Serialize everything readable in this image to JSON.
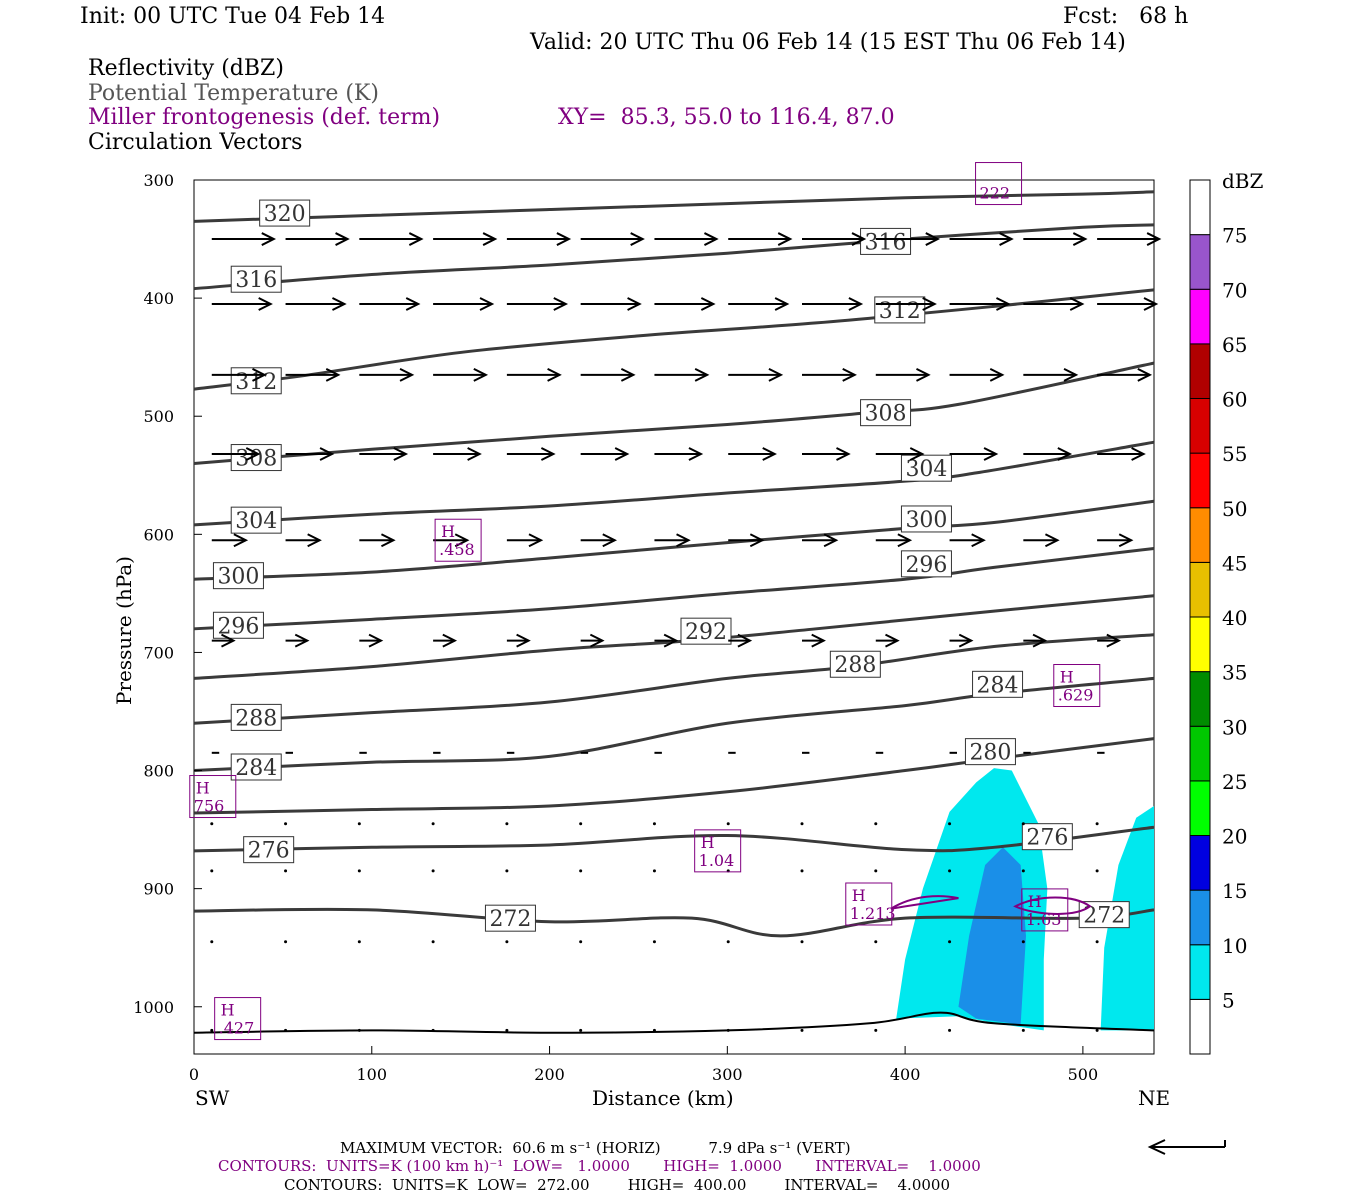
{
  "header": {
    "init": "Init: 00 UTC Tue 04 Feb 14",
    "fcst": "Fcst:   68 h",
    "valid": "Valid: 20 UTC Thu 06 Feb 14 (15 EST Thu 06 Feb 14)",
    "field1": "Reflectivity (dBZ)",
    "field2": "Potential Temperature (K)",
    "field3": "Miller frontogenesis (def. term)",
    "xy": "XY=  85.3, 55.0 to 116.4, 87.0",
    "field4": "Circulation Vectors"
  },
  "colors": {
    "theta": "#3a3a3a",
    "fronto": "#800080",
    "refl_light": "#00e8ee",
    "refl_mid": "#1a8fe8"
  },
  "chart_data": {
    "type": "cross-section",
    "xlabel": "Distance (km)",
    "ylabel": "Pressure (hPa)",
    "x_end_left": "SW",
    "x_end_right": "NE",
    "xlim": [
      0,
      540
    ],
    "ylim": [
      1040,
      300
    ],
    "y_scale": "pressure",
    "x_ticks": [
      0,
      100,
      200,
      300,
      400,
      500
    ],
    "y_ticks": [
      300,
      400,
      500,
      600,
      700,
      800,
      900,
      1000
    ],
    "colorbar": {
      "label": "dBZ",
      "levels": [
        5,
        10,
        15,
        20,
        25,
        30,
        35,
        40,
        45,
        50,
        55,
        60,
        65,
        70,
        75
      ],
      "colors": [
        "#ffffff",
        "#00e8ee",
        "#1a8fe8",
        "#0000e0",
        "#00ff00",
        "#00c800",
        "#008c00",
        "#ffff00",
        "#e8c000",
        "#ff8c00",
        "#ff0000",
        "#d80000",
        "#b00000",
        "#ff00ff",
        "#9955cc",
        "#ffffff"
      ]
    },
    "theta_contours": [
      {
        "label": "320",
        "points": [
          [
            0,
            335
          ],
          [
            100,
            330
          ],
          [
            200,
            325
          ],
          [
            300,
            320
          ],
          [
            400,
            315
          ],
          [
            500,
            312
          ],
          [
            540,
            310
          ]
        ],
        "labels_at": [
          [
            51,
            328
          ]
        ]
      },
      {
        "label": "316",
        "points": [
          [
            0,
            392
          ],
          [
            100,
            380
          ],
          [
            200,
            372
          ],
          [
            300,
            362
          ],
          [
            400,
            350
          ],
          [
            500,
            340
          ],
          [
            540,
            338
          ]
        ],
        "labels_at": [
          [
            35,
            384
          ],
          [
            389,
            352
          ]
        ]
      },
      {
        "label": "312",
        "points": [
          [
            0,
            477
          ],
          [
            60,
            466
          ],
          [
            150,
            446
          ],
          [
            250,
            432
          ],
          [
            350,
            421
          ],
          [
            450,
            407
          ],
          [
            540,
            393
          ]
        ],
        "labels_at": [
          [
            35,
            470
          ],
          [
            397,
            410
          ]
        ]
      },
      {
        "label": "308",
        "points": [
          [
            0,
            540
          ],
          [
            100,
            528
          ],
          [
            200,
            517
          ],
          [
            300,
            507
          ],
          [
            380,
            497
          ],
          [
            430,
            490
          ],
          [
            540,
            455
          ]
        ],
        "labels_at": [
          [
            35,
            535
          ],
          [
            389,
            497
          ]
        ]
      },
      {
        "label": "304",
        "points": [
          [
            0,
            592
          ],
          [
            100,
            583
          ],
          [
            200,
            576
          ],
          [
            300,
            565
          ],
          [
            400,
            555
          ],
          [
            440,
            548
          ],
          [
            540,
            522
          ]
        ],
        "labels_at": [
          [
            35,
            588
          ],
          [
            412,
            544
          ]
        ]
      },
      {
        "label": "300",
        "points": [
          [
            0,
            638
          ],
          [
            100,
            632
          ],
          [
            200,
            620
          ],
          [
            300,
            607
          ],
          [
            400,
            595
          ],
          [
            450,
            590
          ],
          [
            540,
            572
          ]
        ],
        "labels_at": [
          [
            25,
            635
          ],
          [
            412,
            587
          ]
        ]
      },
      {
        "label": "296",
        "points": [
          [
            0,
            680
          ],
          [
            100,
            672
          ],
          [
            200,
            663
          ],
          [
            300,
            650
          ],
          [
            400,
            638
          ],
          [
            450,
            628
          ],
          [
            540,
            612
          ]
        ],
        "labels_at": [
          [
            25,
            677
          ],
          [
            412,
            625
          ]
        ]
      },
      {
        "label": "292",
        "points": [
          [
            0,
            722
          ],
          [
            100,
            712
          ],
          [
            200,
            698
          ],
          [
            280,
            690
          ],
          [
            350,
            680
          ],
          [
            450,
            665
          ],
          [
            540,
            652
          ]
        ],
        "labels_at": [
          [
            288,
            682
          ]
        ]
      },
      {
        "label": "288",
        "points": [
          [
            0,
            760
          ],
          [
            100,
            751
          ],
          [
            200,
            742
          ],
          [
            300,
            722
          ],
          [
            370,
            712
          ],
          [
            450,
            695
          ],
          [
            540,
            685
          ]
        ],
        "labels_at": [
          [
            35,
            755
          ],
          [
            372,
            710
          ]
        ]
      },
      {
        "label": "284",
        "points": [
          [
            0,
            800
          ],
          [
            100,
            793
          ],
          [
            200,
            788
          ],
          [
            300,
            760
          ],
          [
            400,
            745
          ],
          [
            450,
            735
          ],
          [
            540,
            722
          ]
        ],
        "labels_at": [
          [
            35,
            797
          ],
          [
            452,
            727
          ]
        ]
      },
      {
        "label": "280",
        "points": [
          [
            0,
            836
          ],
          [
            100,
            833
          ],
          [
            200,
            830
          ],
          [
            300,
            818
          ],
          [
            400,
            800
          ],
          [
            450,
            790
          ],
          [
            540,
            773
          ]
        ],
        "labels_at": [
          [
            448,
            784
          ]
        ]
      },
      {
        "label": "276",
        "points": [
          [
            0,
            868
          ],
          [
            100,
            865
          ],
          [
            200,
            863
          ],
          [
            300,
            855
          ],
          [
            400,
            867
          ],
          [
            450,
            865
          ],
          [
            540,
            848
          ]
        ],
        "labels_at": [
          [
            42,
            867
          ],
          [
            480,
            856
          ]
        ]
      },
      {
        "label": "272",
        "points": [
          [
            0,
            919
          ],
          [
            100,
            918
          ],
          [
            200,
            928
          ],
          [
            280,
            925
          ],
          [
            330,
            940
          ],
          [
            400,
            925
          ],
          [
            500,
            925
          ],
          [
            540,
            918
          ]
        ],
        "labels_at": [
          [
            178,
            925
          ],
          [
            512,
            922
          ]
        ]
      }
    ],
    "surface_line": [
      [
        0,
        1022
      ],
      [
        100,
        1020
      ],
      [
        200,
        1022
      ],
      [
        300,
        1020
      ],
      [
        380,
        1014
      ],
      [
        420,
        1005
      ],
      [
        450,
        1014
      ],
      [
        540,
        1020
      ]
    ],
    "fronto_maxima": [
      {
        "label": "H",
        "value": ".458",
        "x": 148,
        "p": 605
      },
      {
        "label": "H",
        "value": ".629",
        "x": 496,
        "p": 728
      },
      {
        "label": "H",
        "value": "756",
        "x": 10,
        "p": 822
      },
      {
        "label": "H",
        "value": "1.04",
        "x": 294,
        "p": 868
      },
      {
        "label": "H",
        "value": "1.213",
        "x": 379,
        "p": 913
      },
      {
        "label": "H",
        "value": "1.63",
        "x": 478,
        "p": 918
      },
      {
        "label": "H",
        "value": ".427",
        "x": 24,
        "p": 1010
      },
      {
        "label": "",
        "value": "222",
        "x": 452,
        "p": 303
      }
    ],
    "reflectivity_regions": [
      {
        "level": 5,
        "points": [
          [
            395,
            1010
          ],
          [
            400,
            960
          ],
          [
            410,
            900
          ],
          [
            425,
            835
          ],
          [
            440,
            810
          ],
          [
            450,
            798
          ],
          [
            460,
            800
          ],
          [
            475,
            845
          ],
          [
            480,
            900
          ],
          [
            478,
            960
          ],
          [
            478,
            1020
          ],
          [
            455,
            1015
          ],
          [
            430,
            1008
          ]
        ]
      },
      {
        "level": 10,
        "points": [
          [
            430,
            1000
          ],
          [
            436,
            940
          ],
          [
            445,
            880
          ],
          [
            455,
            865
          ],
          [
            465,
            880
          ],
          [
            468,
            940
          ],
          [
            465,
            1015
          ],
          [
            440,
            1010
          ]
        ]
      },
      {
        "level": 5,
        "points": [
          [
            510,
            1020
          ],
          [
            512,
            950
          ],
          [
            520,
            880
          ],
          [
            530,
            840
          ],
          [
            540,
            830
          ],
          [
            540,
            1020
          ]
        ]
      }
    ],
    "circulation_vectors": [
      {
        "p": 350,
        "u": 1.0,
        "w": 0.0
      },
      {
        "p": 405,
        "u": 0.95,
        "w": 0.0
      },
      {
        "p": 465,
        "u": 0.85,
        "w": 0.0
      },
      {
        "p": 532,
        "u": 0.75,
        "w": 0.0
      },
      {
        "p": 605,
        "u": 0.55,
        "w": 0.0
      },
      {
        "p": 690,
        "u": 0.35,
        "w": 0.0
      },
      {
        "p": 785,
        "u": 0.12,
        "w": 0.0
      }
    ],
    "reference_vector": "←"
  },
  "footer": {
    "line1": "MAXIMUM VECTOR:  60.6 m s⁻¹ (HORIZ)          7.9 dPa s⁻¹ (VERT)",
    "line2": "CONTOURS:  UNITS=K (100 km h)⁻¹  LOW=   1.0000       HIGH=  1.0000       INTERVAL=    1.0000",
    "line3": "CONTOURS:  UNITS=K  LOW=  272.00        HIGH=  400.00        INTERVAL=    4.0000"
  }
}
